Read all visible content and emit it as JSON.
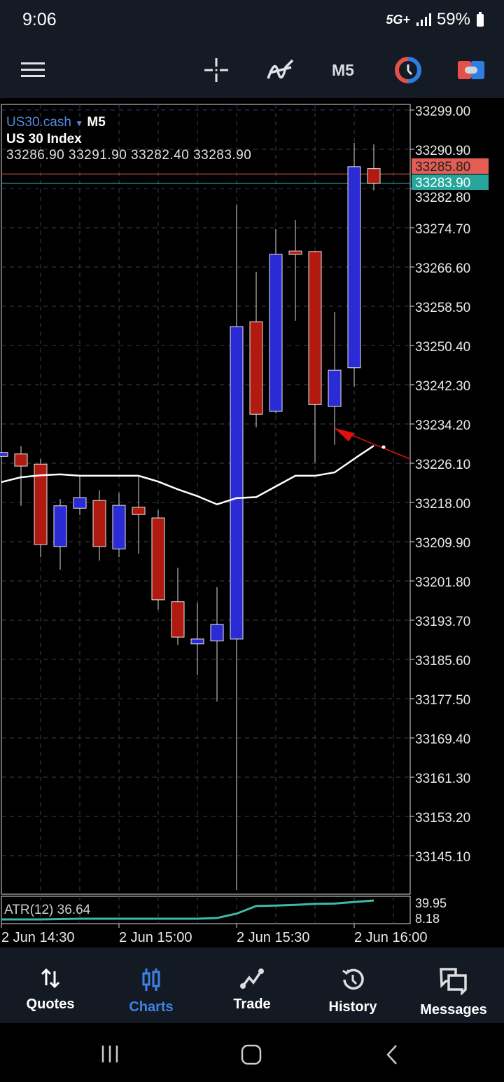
{
  "status_bar": {
    "time": "9:06",
    "network": "5G+",
    "battery": "59%"
  },
  "toolbar": {
    "timeframe": "M5",
    "icons": [
      "menu-icon",
      "crosshair-icon",
      "indicators-icon",
      "one-click-trading-icon",
      "trade-icon"
    ]
  },
  "chart_info": {
    "symbol": "US30.cash",
    "timeframe": "M5",
    "description": "US 30 Index",
    "ohlc": "33286.90 33291.90 33282.40 33283.90"
  },
  "colors": {
    "bull": "#2b2bd6",
    "bear": "#b01a10",
    "ma": "#ffffff",
    "bid": "#26a69a",
    "ask": "#e35d55",
    "atr": "#3fb8a8",
    "active_tab": "#3d82e6"
  },
  "chart_data": {
    "type": "candlestick",
    "price_ticks": [
      "33299.00",
      "33290.90",
      "33282.80",
      "33274.70",
      "33266.60",
      "33258.50",
      "33250.40",
      "33242.30",
      "33234.20",
      "33226.10",
      "33218.00",
      "33209.90",
      "33201.80",
      "33193.70",
      "33185.60",
      "33177.50",
      "33169.40",
      "33161.30",
      "33153.20",
      "33145.10"
    ],
    "ylim": [
      33138.0,
      33299.0
    ],
    "time_labels": [
      "2 Jun 14:30",
      "2 Jun 15:00",
      "2 Jun 15:30",
      "2 Jun 16:00"
    ],
    "candles": [
      {
        "o": 33227.5,
        "h": 33239.5,
        "l": 33225.0,
        "c": 33228.3
      },
      {
        "o": 33228.0,
        "h": 33229.6,
        "l": 33217.3,
        "c": 33225.5
      },
      {
        "o": 33225.9,
        "h": 33227.0,
        "l": 33206.7,
        "c": 33209.3
      },
      {
        "o": 33208.9,
        "h": 33218.7,
        "l": 33204.1,
        "c": 33217.3
      },
      {
        "o": 33216.8,
        "h": 33223.3,
        "l": 33215.4,
        "c": 33219.0
      },
      {
        "o": 33218.4,
        "h": 33220.5,
        "l": 33206.0,
        "c": 33208.9
      },
      {
        "o": 33208.4,
        "h": 33220.0,
        "l": 33206.7,
        "c": 33217.4
      },
      {
        "o": 33217.0,
        "h": 33223.3,
        "l": 33207.4,
        "c": 33215.5
      },
      {
        "o": 33214.8,
        "h": 33216.4,
        "l": 33195.9,
        "c": 33197.9
      },
      {
        "o": 33197.5,
        "h": 33204.5,
        "l": 33188.6,
        "c": 33190.2
      },
      {
        "o": 33188.8,
        "h": 33197.3,
        "l": 33182.4,
        "c": 33189.8
      },
      {
        "o": 33189.4,
        "h": 33200.5,
        "l": 33176.9,
        "c": 33192.8
      },
      {
        "o": 33189.8,
        "h": 33279.5,
        "l": 33138.0,
        "c": 33254.3
      },
      {
        "o": 33255.3,
        "h": 33265.6,
        "l": 33233.5,
        "c": 33236.2
      },
      {
        "o": 33236.8,
        "h": 33274.4,
        "l": 33236.4,
        "c": 33269.2
      },
      {
        "o": 33269.9,
        "h": 33276.3,
        "l": 33255.5,
        "c": 33269.2
      },
      {
        "o": 33269.8,
        "h": 33269.9,
        "l": 33226.2,
        "c": 33238.2
      },
      {
        "o": 33237.8,
        "h": 33257.3,
        "l": 33229.9,
        "c": 33245.3
      },
      {
        "o": 33245.8,
        "h": 33292.2,
        "l": 33241.9,
        "c": 33287.3
      },
      {
        "o": 33286.9,
        "h": 33291.9,
        "l": 33282.4,
        "c": 33283.9
      }
    ],
    "moving_average": [
      33222.2,
      33223.2,
      33223.6,
      33223.8,
      33223.5,
      33223.5,
      33223.5,
      33223.5,
      33222.3,
      33220.7,
      33219.3,
      33217.6,
      33218.9,
      33219.1,
      33221.3,
      33223.5,
      33223.5,
      33224.2,
      33227.0,
      33229.7
    ],
    "bid": {
      "label": "33283.90",
      "value": 33283.9
    },
    "ask": {
      "label": "33285.80",
      "value": 33285.8
    },
    "atr": {
      "label": "ATR(12) 36.64",
      "max_label": "39.95",
      "min_label": "8.18",
      "ylim": [
        8.18,
        39.95
      ],
      "values": [
        12.0,
        12.0,
        12.0,
        12.5,
        13.0,
        13.0,
        13.0,
        13.0,
        13.0,
        13.0,
        13.0,
        14.0,
        20.0,
        30.5,
        31.0,
        32.0,
        33.5,
        33.8,
        36.0,
        38.0
      ]
    }
  },
  "bottom_nav": [
    {
      "label": "Quotes",
      "icon": "quotes-icon"
    },
    {
      "label": "Charts",
      "icon": "charts-icon",
      "active": true
    },
    {
      "label": "Trade",
      "icon": "trade-icon"
    },
    {
      "label": "History",
      "icon": "history-icon"
    },
    {
      "label": "Messages",
      "icon": "messages-icon"
    }
  ]
}
